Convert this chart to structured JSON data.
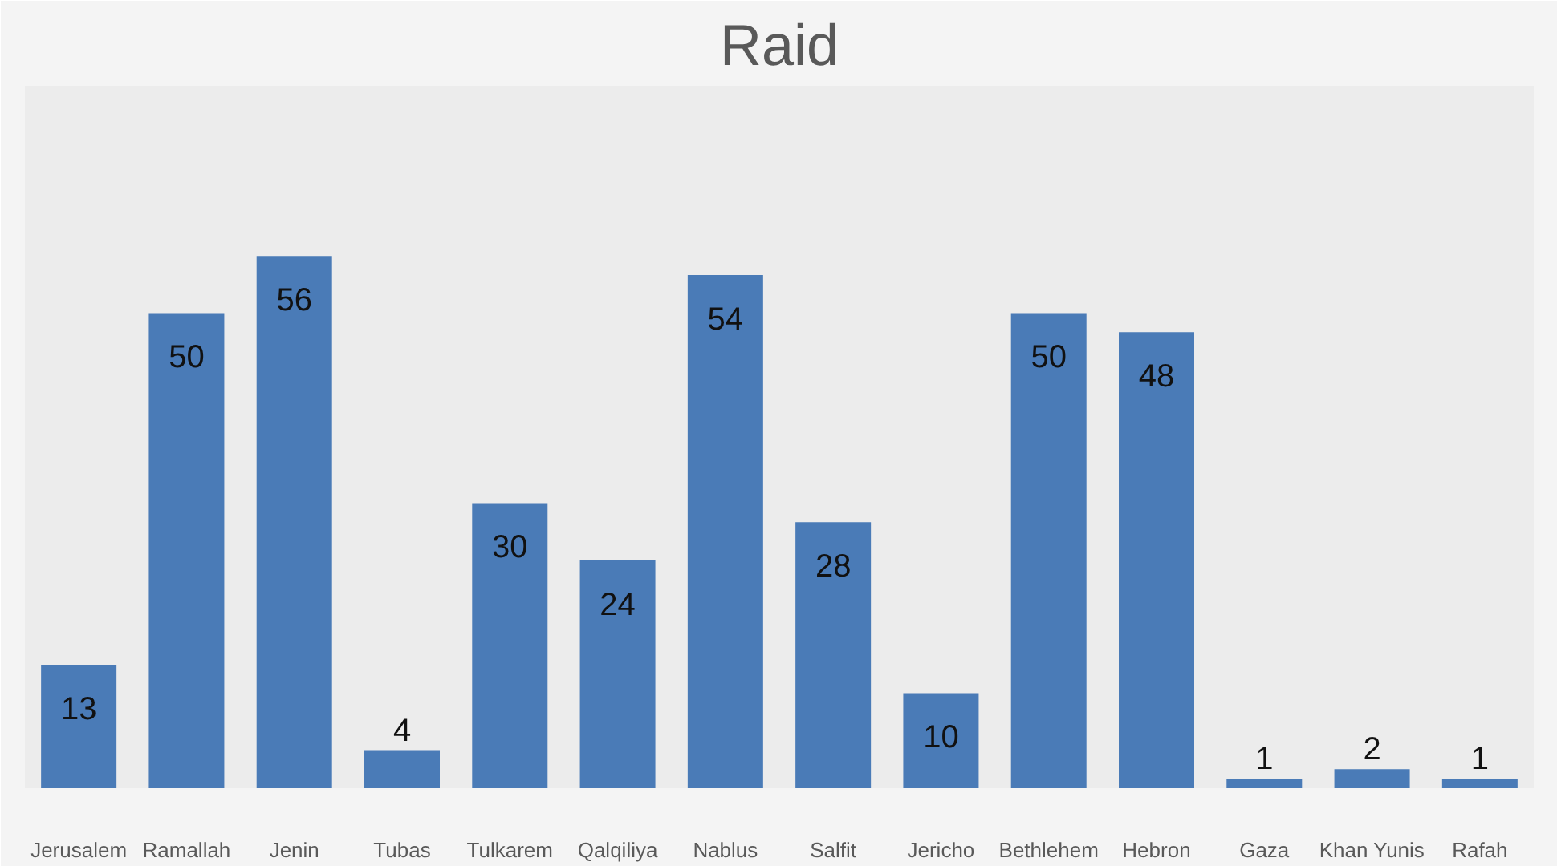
{
  "chart_data": {
    "type": "bar",
    "title": "Raid",
    "categories": [
      "Jerusalem",
      "Ramallah",
      "Jenin",
      "Tubas",
      "Tulkarem",
      "Qalqiliya",
      "Nablus",
      "Salfit",
      "Jericho",
      "Bethlehem",
      "Hebron",
      "Gaza",
      "Khan Yunis",
      "Rafah"
    ],
    "values": [
      13,
      50,
      56,
      4,
      30,
      24,
      54,
      28,
      10,
      50,
      48,
      1,
      2,
      1
    ],
    "color": "#4a7bb7",
    "data_labels": true,
    "grid": false
  }
}
